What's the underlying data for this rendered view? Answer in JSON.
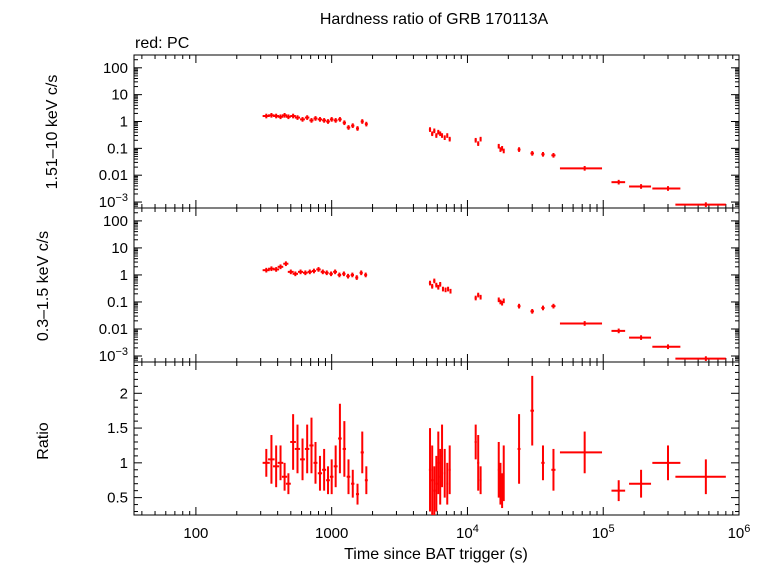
{
  "chart_data": {
    "type": "scatter",
    "title": "Hardness ratio of GRB 170113A",
    "subtitle": "red: PC",
    "xlabel": "Time since BAT trigger (s)",
    "xscale": "log",
    "xlim": [
      35,
      1000000
    ],
    "xticks": [
      {
        "value": 100,
        "label": "100"
      },
      {
        "value": 1000,
        "label": "1000"
      },
      {
        "value": 10000,
        "label": "10",
        "exp": "4"
      },
      {
        "value": 100000,
        "label": "10",
        "exp": "5"
      },
      {
        "value": 1000000,
        "label": "10",
        "exp": "6"
      }
    ],
    "color": "#ff0000",
    "panels": [
      {
        "id": "hard",
        "ylabel": "1.51–10 keV c/s",
        "yscale": "log",
        "ylim": [
          0.0006,
          300
        ],
        "yticks": [
          {
            "value": 100,
            "label": "100"
          },
          {
            "value": 10,
            "label": "10"
          },
          {
            "value": 1,
            "label": "1"
          },
          {
            "value": 0.1,
            "label": "0.1"
          },
          {
            "value": 0.01,
            "label": "0.01"
          },
          {
            "value": 0.001,
            "label": "10",
            "exp": "−3"
          }
        ],
        "points": [
          [
            330,
            1.6,
            20
          ],
          [
            360,
            1.7,
            20
          ],
          [
            390,
            1.6,
            20
          ],
          [
            420,
            1.5,
            20
          ],
          [
            450,
            1.7,
            20
          ],
          [
            480,
            1.5,
            20
          ],
          [
            520,
            1.6,
            25
          ],
          [
            560,
            1.4,
            25
          ],
          [
            610,
            1.2,
            25
          ],
          [
            660,
            1.4,
            25
          ],
          [
            710,
            1.1,
            25
          ],
          [
            760,
            1.3,
            25
          ],
          [
            820,
            1.2,
            30
          ],
          [
            880,
            1.1,
            30
          ],
          [
            940,
            1.0,
            30
          ],
          [
            1000,
            1.2,
            30
          ],
          [
            1070,
            1.1,
            35
          ],
          [
            1150,
            1.2,
            35
          ],
          [
            1240,
            0.9,
            35
          ],
          [
            1330,
            0.6,
            40
          ],
          [
            1430,
            0.7,
            40
          ],
          [
            1550,
            0.55,
            40
          ],
          [
            1680,
            1.0,
            45
          ],
          [
            1800,
            0.8,
            45
          ],
          [
            5300,
            0.5,
            100
          ],
          [
            5500,
            0.35,
            100
          ],
          [
            5700,
            0.45,
            100
          ],
          [
            5900,
            0.3,
            100
          ],
          [
            6100,
            0.4,
            100
          ],
          [
            6300,
            0.35,
            100
          ],
          [
            6500,
            0.3,
            100
          ],
          [
            6800,
            0.25,
            100
          ],
          [
            7100,
            0.3,
            100
          ],
          [
            7400,
            0.22,
            120
          ],
          [
            11500,
            0.2,
            200
          ],
          [
            12000,
            0.15,
            200
          ],
          [
            12500,
            0.22,
            200
          ],
          [
            17000,
            0.12,
            250
          ],
          [
            17500,
            0.09,
            250
          ],
          [
            18000,
            0.1,
            250
          ],
          [
            18500,
            0.08,
            250
          ],
          [
            24000,
            0.09,
            600
          ],
          [
            30000,
            0.065,
            900
          ],
          [
            36000,
            0.06,
            1000
          ],
          [
            43000,
            0.055,
            1500
          ],
          [
            73000,
            0.018,
            25000
          ],
          [
            130000,
            0.0055,
            15000
          ],
          [
            190000,
            0.0038,
            35000
          ],
          [
            300000,
            0.0032,
            70000
          ],
          [
            570000,
            0.0008,
            230000
          ]
        ]
      },
      {
        "id": "soft",
        "ylabel": "0.3–1.5 keV c/s",
        "yscale": "log",
        "ylim": [
          0.0006,
          300
        ],
        "yticks": [
          {
            "value": 100,
            "label": "100"
          },
          {
            "value": 10,
            "label": "10"
          },
          {
            "value": 1,
            "label": "1"
          },
          {
            "value": 0.1,
            "label": "0.1"
          },
          {
            "value": 0.01,
            "label": "0.01"
          },
          {
            "value": 0.001,
            "label": "10",
            "exp": "−3"
          }
        ],
        "points": [
          [
            330,
            1.5,
            20
          ],
          [
            360,
            1.7,
            20
          ],
          [
            390,
            1.6,
            20
          ],
          [
            420,
            2.0,
            20
          ],
          [
            460,
            2.6,
            20
          ],
          [
            500,
            1.3,
            25
          ],
          [
            540,
            1.1,
            25
          ],
          [
            590,
            1.3,
            25
          ],
          [
            640,
            1.2,
            25
          ],
          [
            690,
            1.3,
            25
          ],
          [
            740,
            1.4,
            25
          ],
          [
            800,
            1.6,
            30
          ],
          [
            860,
            1.3,
            30
          ],
          [
            920,
            1.2,
            30
          ],
          [
            990,
            1.1,
            30
          ],
          [
            1060,
            1.3,
            35
          ],
          [
            1140,
            1.0,
            35
          ],
          [
            1230,
            1.1,
            35
          ],
          [
            1320,
            0.9,
            40
          ],
          [
            1420,
            1.0,
            40
          ],
          [
            1530,
            0.8,
            40
          ],
          [
            1650,
            1.2,
            45
          ],
          [
            1780,
            1.0,
            45
          ],
          [
            5300,
            0.5,
            100
          ],
          [
            5500,
            0.38,
            100
          ],
          [
            5700,
            0.6,
            100
          ],
          [
            5900,
            0.42,
            100
          ],
          [
            6100,
            0.35,
            100
          ],
          [
            6300,
            0.45,
            100
          ],
          [
            6600,
            0.3,
            100
          ],
          [
            6900,
            0.28,
            100
          ],
          [
            7200,
            0.3,
            100
          ],
          [
            7500,
            0.25,
            120
          ],
          [
            11500,
            0.14,
            200
          ],
          [
            12000,
            0.18,
            200
          ],
          [
            12500,
            0.15,
            200
          ],
          [
            17000,
            0.12,
            250
          ],
          [
            17500,
            0.1,
            250
          ],
          [
            18000,
            0.09,
            250
          ],
          [
            18500,
            0.11,
            250
          ],
          [
            24000,
            0.07,
            600
          ],
          [
            30000,
            0.045,
            900
          ],
          [
            36000,
            0.06,
            1000
          ],
          [
            43000,
            0.07,
            1500
          ],
          [
            73000,
            0.016,
            25000
          ],
          [
            130000,
            0.0085,
            15000
          ],
          [
            190000,
            0.0048,
            35000
          ],
          [
            300000,
            0.0022,
            70000
          ],
          [
            570000,
            0.0008,
            230000
          ]
        ]
      },
      {
        "id": "ratio",
        "ylabel": "Ratio",
        "yscale": "linear",
        "ylim": [
          0.25,
          2.45
        ],
        "yticks": [
          {
            "value": 2,
            "label": "2"
          },
          {
            "value": 1.5,
            "label": "1.5"
          },
          {
            "value": 1,
            "label": "1"
          },
          {
            "value": 0.5,
            "label": "0.5"
          }
        ],
        "points": [
          [
            330,
            1.0,
            20,
            0.2
          ],
          [
            360,
            1.05,
            20,
            0.35
          ],
          [
            390,
            0.95,
            20,
            0.3
          ],
          [
            420,
            1.0,
            20,
            0.25
          ],
          [
            450,
            0.8,
            20,
            0.2
          ],
          [
            480,
            0.7,
            20,
            0.15
          ],
          [
            520,
            1.3,
            25,
            0.4
          ],
          [
            560,
            1.2,
            25,
            0.35
          ],
          [
            610,
            1.05,
            25,
            0.3
          ],
          [
            660,
            1.2,
            25,
            0.35
          ],
          [
            710,
            1.25,
            25,
            0.4
          ],
          [
            760,
            1.0,
            25,
            0.3
          ],
          [
            820,
            0.85,
            30,
            0.25
          ],
          [
            880,
            0.9,
            30,
            0.3
          ],
          [
            940,
            0.75,
            30,
            0.2
          ],
          [
            1000,
            0.8,
            30,
            0.25
          ],
          [
            1070,
            0.95,
            35,
            0.3
          ],
          [
            1150,
            1.35,
            35,
            0.5
          ],
          [
            1240,
            1.2,
            35,
            0.4
          ],
          [
            1330,
            0.8,
            40,
            0.25
          ],
          [
            1430,
            0.7,
            40,
            0.2
          ],
          [
            1550,
            0.55,
            40,
            0.15
          ],
          [
            1680,
            1.15,
            45,
            0.3
          ],
          [
            1800,
            0.75,
            45,
            0.2
          ],
          [
            5300,
            0.9,
            100,
            0.6
          ],
          [
            5500,
            0.75,
            100,
            0.5
          ],
          [
            5700,
            0.6,
            100,
            0.35
          ],
          [
            5900,
            0.7,
            100,
            0.4
          ],
          [
            6100,
            1.0,
            100,
            0.45
          ],
          [
            6300,
            0.8,
            100,
            0.4
          ],
          [
            6500,
            1.1,
            100,
            0.45
          ],
          [
            6800,
            0.85,
            100,
            0.35
          ],
          [
            7100,
            0.7,
            100,
            0.3
          ],
          [
            7400,
            0.9,
            120,
            0.35
          ],
          [
            11500,
            1.3,
            200,
            0.25
          ],
          [
            12000,
            1.0,
            200,
            0.4
          ],
          [
            12500,
            0.75,
            200,
            0.2
          ],
          [
            17000,
            0.9,
            250,
            0.4
          ],
          [
            17500,
            0.7,
            250,
            0.3
          ],
          [
            18000,
            0.6,
            250,
            0.25
          ],
          [
            18500,
            0.85,
            250,
            0.4
          ],
          [
            24000,
            1.2,
            600,
            0.5
          ],
          [
            30000,
            1.75,
            900,
            0.5
          ],
          [
            36000,
            1.0,
            1000,
            0.25
          ],
          [
            43000,
            0.9,
            1500,
            0.3
          ],
          [
            73000,
            1.15,
            25000,
            0.3
          ],
          [
            130000,
            0.6,
            15000,
            0.15
          ],
          [
            190000,
            0.7,
            35000,
            0.2
          ],
          [
            300000,
            1.0,
            70000,
            0.25
          ],
          [
            570000,
            0.8,
            230000,
            0.25
          ]
        ]
      }
    ]
  }
}
